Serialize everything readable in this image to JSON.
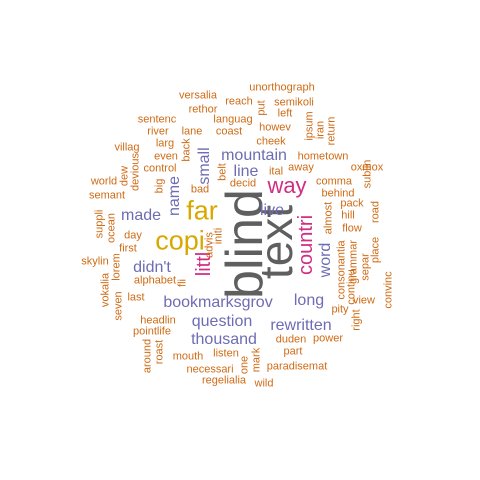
{
  "colors": {
    "gray": "#5f5f5f",
    "yellow": "#d9a800",
    "pink": "#d12d83",
    "purple": "#6d6cb4",
    "orange": "#cf6b15"
  },
  "words": [
    {
      "text": "blind",
      "color": "gray"
    },
    {
      "text": "text",
      "color": "gray"
    },
    {
      "text": "far",
      "color": "yellow"
    },
    {
      "text": "copi",
      "color": "yellow"
    },
    {
      "text": "way",
      "color": "pink"
    },
    {
      "text": "countri",
      "color": "pink"
    },
    {
      "text": "littl",
      "color": "pink"
    },
    {
      "text": "mountain",
      "color": "purple"
    },
    {
      "text": "bookmarksgrov",
      "color": "purple"
    },
    {
      "text": "question",
      "color": "purple"
    },
    {
      "text": "rewritten",
      "color": "purple"
    },
    {
      "text": "thousand",
      "color": "purple"
    },
    {
      "text": "made",
      "color": "purple"
    },
    {
      "text": "didn't",
      "color": "purple"
    },
    {
      "text": "long",
      "color": "purple"
    },
    {
      "text": "word",
      "color": "purple"
    },
    {
      "text": "line",
      "color": "purple"
    },
    {
      "text": "live",
      "color": "purple"
    },
    {
      "text": "name",
      "color": "purple"
    },
    {
      "text": "small",
      "color": "purple"
    },
    {
      "text": "unorthograph",
      "color": "orange"
    },
    {
      "text": "versalia",
      "color": "orange"
    },
    {
      "text": "reach",
      "color": "orange"
    },
    {
      "text": "put",
      "color": "orange"
    },
    {
      "text": "semikoli",
      "color": "orange"
    },
    {
      "text": "rethor",
      "color": "orange"
    },
    {
      "text": "left",
      "color": "orange"
    },
    {
      "text": "sentenc",
      "color": "orange"
    },
    {
      "text": "languag",
      "color": "orange"
    },
    {
      "text": "howev",
      "color": "orange"
    },
    {
      "text": "ipsum",
      "color": "orange"
    },
    {
      "text": "iran",
      "color": "orange"
    },
    {
      "text": "return",
      "color": "orange"
    },
    {
      "text": "river",
      "color": "orange"
    },
    {
      "text": "lane",
      "color": "orange"
    },
    {
      "text": "coast",
      "color": "orange"
    },
    {
      "text": "larg",
      "color": "orange"
    },
    {
      "text": "back",
      "color": "orange"
    },
    {
      "text": "cheek",
      "color": "orange"
    },
    {
      "text": "villag",
      "color": "orange"
    },
    {
      "text": "even",
      "color": "orange"
    },
    {
      "text": "hometown",
      "color": "orange"
    },
    {
      "text": "control",
      "color": "orange"
    },
    {
      "text": "belt",
      "color": "orange"
    },
    {
      "text": "ital",
      "color": "orange"
    },
    {
      "text": "sublin",
      "color": "orange"
    },
    {
      "text": "dew",
      "color": "orange"
    },
    {
      "text": "devious",
      "color": "orange"
    },
    {
      "text": "world",
      "color": "orange"
    },
    {
      "text": "comma",
      "color": "orange"
    },
    {
      "text": "decid",
      "color": "orange"
    },
    {
      "text": "semant",
      "color": "orange"
    },
    {
      "text": "big",
      "color": "orange"
    },
    {
      "text": "bad",
      "color": "orange"
    },
    {
      "text": "away",
      "color": "orange"
    },
    {
      "text": "oxmox",
      "color": "orange"
    },
    {
      "text": "behind",
      "color": "orange"
    },
    {
      "text": "pack",
      "color": "orange"
    },
    {
      "text": "road",
      "color": "orange"
    },
    {
      "text": "hill",
      "color": "orange"
    },
    {
      "text": "suppli",
      "color": "orange"
    },
    {
      "text": "ocean",
      "color": "orange"
    },
    {
      "text": "almost",
      "color": "orange"
    },
    {
      "text": "day",
      "color": "orange"
    },
    {
      "text": "flow",
      "color": "orange"
    },
    {
      "text": "initi",
      "color": "orange"
    },
    {
      "text": "first",
      "color": "orange"
    },
    {
      "text": "advis",
      "color": "orange"
    },
    {
      "text": "place",
      "color": "orange"
    },
    {
      "text": "separ",
      "color": "orange"
    },
    {
      "text": "skylin",
      "color": "orange"
    },
    {
      "text": "grammar",
      "color": "orange"
    },
    {
      "text": "consonantia",
      "color": "orange"
    },
    {
      "text": "lorem",
      "color": "orange"
    },
    {
      "text": "continu",
      "color": "orange"
    },
    {
      "text": "convinc",
      "color": "orange"
    },
    {
      "text": "vokalia",
      "color": "orange"
    },
    {
      "text": "alphabet",
      "color": "orange"
    },
    {
      "text": "fli",
      "color": "orange"
    },
    {
      "text": "seven",
      "color": "orange"
    },
    {
      "text": "last",
      "color": "orange"
    },
    {
      "text": "view",
      "color": "orange"
    },
    {
      "text": "pity",
      "color": "orange"
    },
    {
      "text": "right",
      "color": "orange"
    },
    {
      "text": "headlin",
      "color": "orange"
    },
    {
      "text": "pointlife",
      "color": "orange"
    },
    {
      "text": "duden",
      "color": "orange"
    },
    {
      "text": "power",
      "color": "orange"
    },
    {
      "text": "around",
      "color": "orange"
    },
    {
      "text": "roast",
      "color": "orange"
    },
    {
      "text": "listen",
      "color": "orange"
    },
    {
      "text": "part",
      "color": "orange"
    },
    {
      "text": "mouth",
      "color": "orange"
    },
    {
      "text": "mark",
      "color": "orange"
    },
    {
      "text": "one",
      "color": "orange"
    },
    {
      "text": "paradisemat",
      "color": "orange"
    },
    {
      "text": "necessari",
      "color": "orange"
    },
    {
      "text": "regelialia",
      "color": "orange"
    },
    {
      "text": "wild",
      "color": "orange"
    }
  ]
}
